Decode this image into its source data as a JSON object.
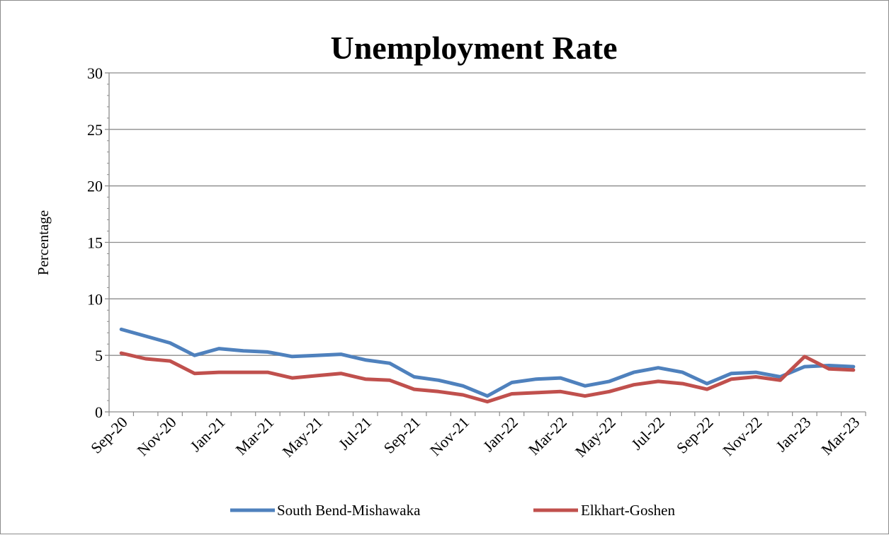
{
  "chart_data": {
    "type": "line",
    "title": "Unemployment Rate",
    "xlabel": "",
    "ylabel": "Percentage",
    "ylim": [
      0,
      30
    ],
    "yticks": [
      0,
      5,
      10,
      15,
      20,
      25,
      30
    ],
    "grid": "horizontal",
    "legend_position": "bottom",
    "x": [
      "Sep-20",
      "Oct-20",
      "Nov-20",
      "Dec-20",
      "Jan-21",
      "Feb-21",
      "Mar-21",
      "Apr-21",
      "May-21",
      "Jun-21",
      "Jul-21",
      "Aug-21",
      "Sep-21",
      "Oct-21",
      "Nov-21",
      "Dec-21",
      "Jan-22",
      "Feb-22",
      "Mar-22",
      "Apr-22",
      "May-22",
      "Jun-22",
      "Jul-22",
      "Aug-22",
      "Sep-22",
      "Oct-22",
      "Nov-22",
      "Dec-22",
      "Jan-23",
      "Feb-23",
      "Mar-23"
    ],
    "x_tick_labels": [
      "Sep-20",
      "Nov-20",
      "Jan-21",
      "Mar-21",
      "May-21",
      "Jul-21",
      "Sep-21",
      "Nov-21",
      "Jan-22",
      "Mar-22",
      "May-22",
      "Jul-22",
      "Sep-22",
      "Nov-22",
      "Jan-23",
      "Mar-23"
    ],
    "series": [
      {
        "name": "South Bend-Mishawaka",
        "color": "#4f81bd",
        "values": [
          7.3,
          6.7,
          6.1,
          5.0,
          5.6,
          5.4,
          5.3,
          4.9,
          5.0,
          5.1,
          4.6,
          4.3,
          3.1,
          2.8,
          2.3,
          1.4,
          2.6,
          2.9,
          3.0,
          2.3,
          2.7,
          3.5,
          3.9,
          3.5,
          2.5,
          3.4,
          3.5,
          3.1,
          4.0,
          4.1,
          4.0
        ]
      },
      {
        "name": "Elkhart-Goshen",
        "color": "#c0504d",
        "values": [
          5.2,
          4.7,
          4.5,
          3.4,
          3.5,
          3.5,
          3.5,
          3.0,
          3.2,
          3.4,
          2.9,
          2.8,
          2.0,
          1.8,
          1.5,
          0.9,
          1.6,
          1.7,
          1.8,
          1.4,
          1.8,
          2.4,
          2.7,
          2.5,
          2.0,
          2.9,
          3.1,
          2.8,
          4.9,
          3.8,
          3.7
        ]
      }
    ]
  }
}
